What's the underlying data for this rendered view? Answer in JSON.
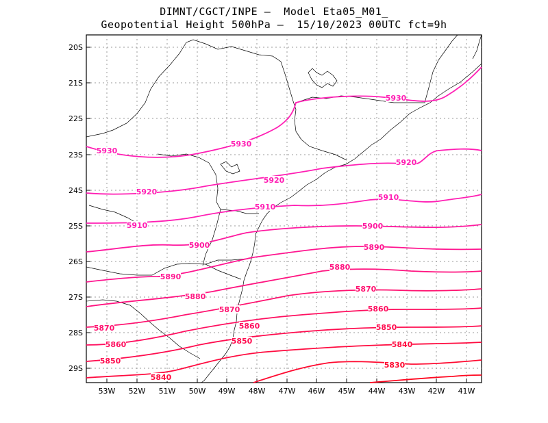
{
  "title_line1": "DIMNT/CGCT/INPE –  Model Eta05_M01_",
  "title_line2": "Geopotential Height 500hPa –  15/10/2023 00UTC fct=9h",
  "lat_labels": [
    "20S",
    "21S",
    "22S",
    "23S",
    "24S",
    "25S",
    "26S",
    "27S",
    "28S",
    "29S"
  ],
  "lon_labels": [
    "53W",
    "52W",
    "51W",
    "50W",
    "49W",
    "48W",
    "47W",
    "46W",
    "45W",
    "44W",
    "43W",
    "42W",
    "41W"
  ],
  "contours": [
    {
      "value": "5930",
      "color": "#ff1fb4",
      "labels": [
        "5930",
        "5930",
        "5930"
      ]
    },
    {
      "value": "5920",
      "color": "#ff1fb4",
      "labels": [
        "5920",
        "5920",
        "5920"
      ]
    },
    {
      "value": "5910",
      "color": "#ff1fb4",
      "labels": [
        "5910",
        "5910",
        "5910"
      ]
    },
    {
      "value": "5900",
      "color": "#ff1aa0",
      "labels": [
        "5900",
        "5900"
      ]
    },
    {
      "value": "5890",
      "color": "#ff1690",
      "labels": [
        "5890",
        "5890"
      ]
    },
    {
      "value": "5880",
      "color": "#ff1480",
      "labels": [
        "5880",
        "5880"
      ]
    },
    {
      "value": "5870",
      "color": "#ff1270",
      "labels": [
        "5870",
        "5870",
        "5870"
      ]
    },
    {
      "value": "5860",
      "color": "#ff1060",
      "labels": [
        "5860",
        "5860",
        "5860"
      ]
    },
    {
      "value": "5850",
      "color": "#ff0e50",
      "labels": [
        "5850",
        "5850",
        "5850"
      ]
    },
    {
      "value": "5840",
      "color": "#ff0c40",
      "labels": [
        "5840",
        "5840"
      ]
    },
    {
      "value": "5830",
      "color": "#ff0a30",
      "labels": [
        "5830"
      ]
    }
  ]
}
